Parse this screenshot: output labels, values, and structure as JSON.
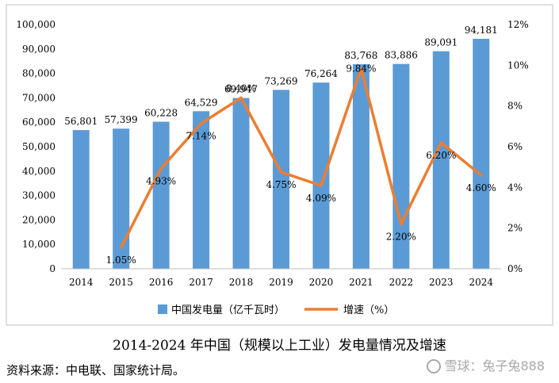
{
  "chart_data": {
    "type": "bar",
    "categories": [
      "2014",
      "2015",
      "2016",
      "2017",
      "2018",
      "2019",
      "2020",
      "2021",
      "2022",
      "2023",
      "2024"
    ],
    "series": [
      {
        "name": "中国发电量（亿千瓦时）",
        "type": "bar",
        "axis": "left",
        "values": [
          56801,
          57399,
          60228,
          64529,
          69947,
          73269,
          76264,
          83768,
          83886,
          89091,
          94181
        ],
        "labels": [
          "56,801",
          "57,399",
          "60,228",
          "64,529",
          "69,947",
          "73,269",
          "76,264",
          "83,768",
          "83,886",
          "89,091",
          "94,181"
        ],
        "color": "#5B9BD5"
      },
      {
        "name": "增速（%）",
        "type": "line",
        "axis": "right",
        "values": [
          null,
          1.05,
          4.93,
          7.14,
          8.4,
          4.75,
          4.09,
          9.84,
          2.2,
          6.2,
          4.6
        ],
        "labels": [
          "",
          "1.05%",
          "4.93%",
          "7.14%",
          "8.40%",
          "4.75%",
          "4.09%",
          "9.84%",
          "2.20%",
          "6.20%",
          "4.60%"
        ],
        "color": "#ED7D31"
      }
    ],
    "y_left": {
      "ylim": [
        0,
        100000
      ],
      "ticks": [
        0,
        10000,
        20000,
        30000,
        40000,
        50000,
        60000,
        70000,
        80000,
        90000,
        100000
      ],
      "tick_labels": [
        "0",
        "10,000",
        "20,000",
        "30,000",
        "40,000",
        "50,000",
        "60,000",
        "70,000",
        "80,000",
        "90,000",
        "100,000"
      ]
    },
    "y_right": {
      "ylim": [
        0,
        12
      ],
      "ticks": [
        0,
        2,
        4,
        6,
        8,
        10,
        12
      ],
      "tick_labels": [
        "0%",
        "2%",
        "4%",
        "6%",
        "8%",
        "10%",
        "12%"
      ]
    },
    "grid": false,
    "legend_position": "bottom"
  },
  "caption": {
    "title": "2014-2024 年中国（规模以上工业）发电量情况及增速",
    "source": "资料来源：中电联、国家统计局。"
  },
  "watermark": "雪球：兔子兔888"
}
